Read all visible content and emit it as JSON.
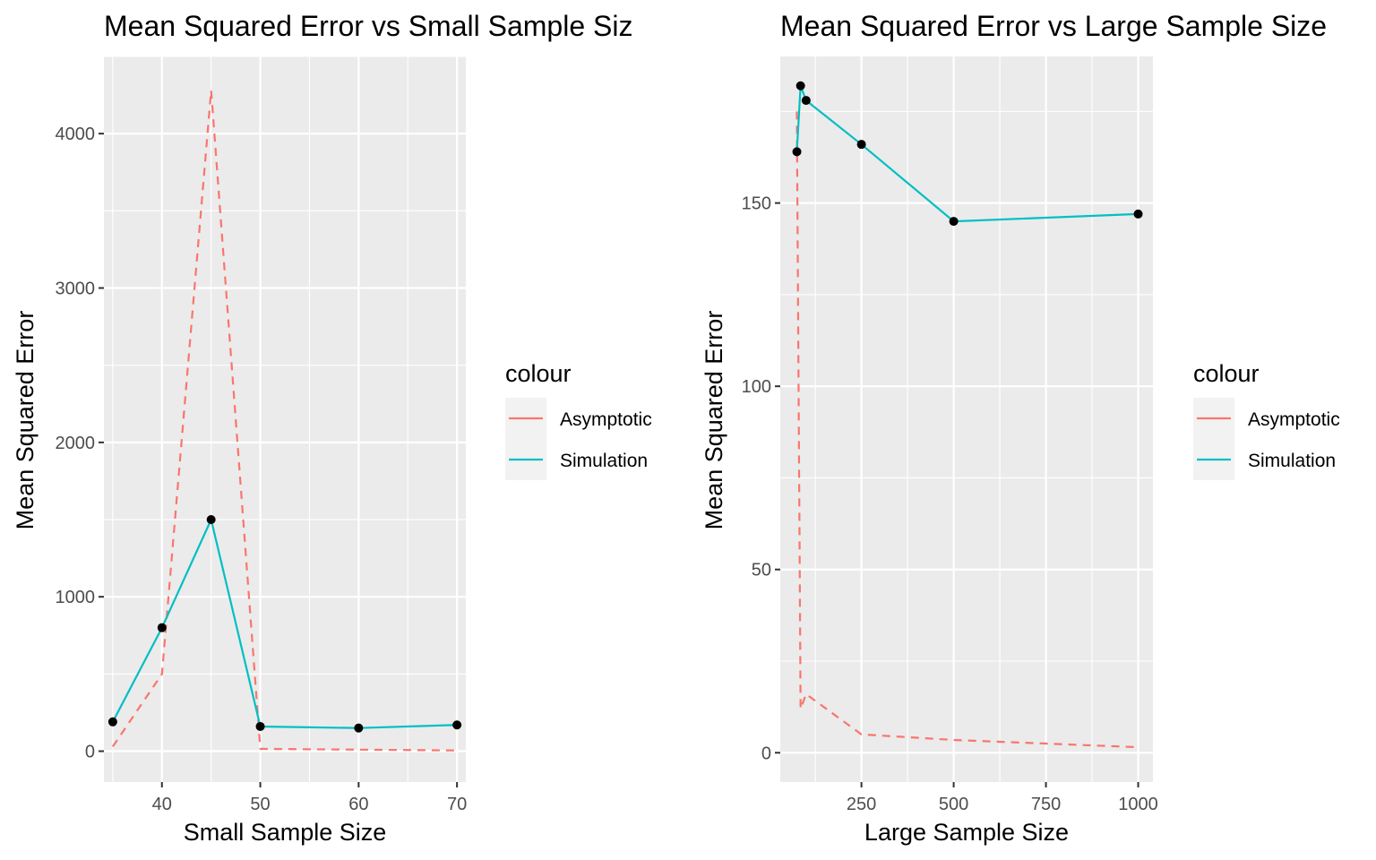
{
  "chart_data": [
    {
      "type": "line",
      "title": "Mean Squared Error vs Small Sample Siz",
      "xlabel": "Small Sample Size",
      "ylabel": "Mean Squared Error",
      "xlim": [
        34.1,
        70.9
      ],
      "ylim": [
        -200,
        4500
      ],
      "x_ticks": [
        "40",
        "50",
        "60",
        "70"
      ],
      "y_ticks": [
        "0",
        "1000",
        "2000",
        "3000",
        "4000"
      ],
      "grid": true,
      "x": [
        35,
        40,
        45,
        50,
        60,
        70
      ],
      "series": [
        {
          "name": "Asymptotic",
          "style": "dashed",
          "color": "#F8766D",
          "values": [
            30,
            500,
            4280,
            15,
            10,
            5
          ]
        },
        {
          "name": "Simulation",
          "style": "solid",
          "color": "#00BFC4",
          "values": [
            190,
            800,
            1500,
            160,
            150,
            170
          ],
          "points": true
        }
      ],
      "legend": {
        "title": "colour",
        "position": "right",
        "entries": [
          "Asymptotic",
          "Simulation"
        ]
      }
    },
    {
      "type": "line",
      "title": "Mean Squared Error vs Large Sample Size",
      "xlabel": "Large Sample Size",
      "ylabel": "Mean Squared Error",
      "xlim": [
        30,
        1040
      ],
      "ylim": [
        -8,
        190
      ],
      "x_ticks": [
        "250",
        "500",
        "750",
        "1000"
      ],
      "y_ticks": [
        "0",
        "50",
        "100",
        "150"
      ],
      "grid": true,
      "x": [
        75,
        85,
        100,
        250,
        500,
        1000
      ],
      "series": [
        {
          "name": "Asymptotic",
          "style": "dashed",
          "color": "#F8766D",
          "values": [
            175,
            12,
            16,
            5,
            3.5,
            1.5
          ]
        },
        {
          "name": "Simulation",
          "style": "solid",
          "color": "#00BFC4",
          "values": [
            164,
            182,
            178,
            166,
            145,
            147
          ],
          "points": true
        }
      ],
      "legend": {
        "title": "colour",
        "position": "right",
        "entries": [
          "Asymptotic",
          "Simulation"
        ]
      }
    }
  ]
}
